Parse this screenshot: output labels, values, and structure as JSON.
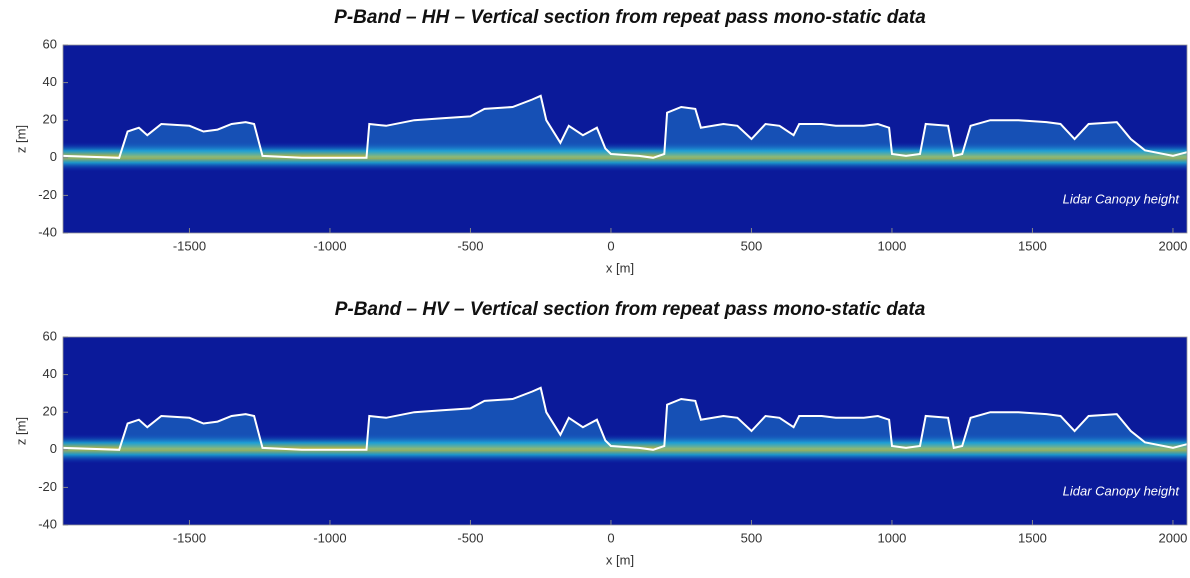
{
  "chart_data": [
    {
      "type": "line",
      "title": "P-Band – HH – Vertical section from repeat pass mono-static data",
      "xlabel": "x [m]",
      "ylabel": "z [m]",
      "annotation": "Lidar Canopy height",
      "xlim": [
        -1950,
        2050
      ],
      "ylim": [
        -40,
        60
      ],
      "xticks": [
        -1500,
        -1000,
        -500,
        0,
        500,
        1000,
        1500,
        2000
      ],
      "yticks": [
        -40,
        -20,
        0,
        20,
        40,
        60
      ],
      "color": "#ffffff",
      "x": [
        -1950,
        -1750,
        -1720,
        -1680,
        -1650,
        -1600,
        -1500,
        -1450,
        -1400,
        -1350,
        -1300,
        -1270,
        -1240,
        -1100,
        -900,
        -870,
        -860,
        -800,
        -700,
        -600,
        -500,
        -450,
        -350,
        -280,
        -250,
        -230,
        -180,
        -150,
        -100,
        -50,
        -20,
        0,
        100,
        150,
        190,
        200,
        250,
        300,
        320,
        400,
        450,
        500,
        550,
        600,
        650,
        670,
        750,
        800,
        900,
        950,
        990,
        1000,
        1050,
        1100,
        1120,
        1200,
        1220,
        1250,
        1280,
        1350,
        1450,
        1550,
        1600,
        1650,
        1700,
        1800,
        1850,
        1900,
        2000,
        2050
      ],
      "values": [
        1,
        0,
        14,
        16,
        12,
        18,
        17,
        14,
        15,
        18,
        19,
        18,
        1,
        0,
        0,
        0,
        18,
        17,
        20,
        21,
        22,
        26,
        27,
        31,
        33,
        20,
        8,
        17,
        12,
        16,
        5,
        2,
        1,
        0,
        2,
        24,
        27,
        26,
        16,
        18,
        17,
        10,
        18,
        17,
        12,
        18,
        18,
        17,
        17,
        18,
        16,
        2,
        1,
        2,
        18,
        17,
        1,
        2,
        17,
        20,
        20,
        19,
        18,
        10,
        18,
        19,
        10,
        4,
        1,
        3
      ]
    },
    {
      "type": "line",
      "title": "P-Band – HV – Vertical section from repeat pass mono-static data",
      "xlabel": "x [m]",
      "ylabel": "z [m]",
      "annotation": "Lidar Canopy height",
      "xlim": [
        -1950,
        2050
      ],
      "ylim": [
        -40,
        60
      ],
      "xticks": [
        -1500,
        -1000,
        -500,
        0,
        500,
        1000,
        1500,
        2000
      ],
      "yticks": [
        -40,
        -20,
        0,
        20,
        40,
        60
      ],
      "color": "#ffffff",
      "x": [
        -1950,
        -1750,
        -1720,
        -1680,
        -1650,
        -1600,
        -1500,
        -1450,
        -1400,
        -1350,
        -1300,
        -1270,
        -1240,
        -1100,
        -900,
        -870,
        -860,
        -800,
        -700,
        -600,
        -500,
        -450,
        -350,
        -280,
        -250,
        -230,
        -180,
        -150,
        -100,
        -50,
        -20,
        0,
        100,
        150,
        190,
        200,
        250,
        300,
        320,
        400,
        450,
        500,
        550,
        600,
        650,
        670,
        750,
        800,
        900,
        950,
        990,
        1000,
        1050,
        1100,
        1120,
        1200,
        1220,
        1250,
        1280,
        1350,
        1450,
        1550,
        1600,
        1650,
        1700,
        1800,
        1850,
        1900,
        2000,
        2050
      ],
      "values": [
        1,
        0,
        14,
        16,
        12,
        18,
        17,
        14,
        15,
        18,
        19,
        18,
        1,
        0,
        0,
        0,
        18,
        17,
        20,
        21,
        22,
        26,
        27,
        31,
        33,
        20,
        8,
        17,
        12,
        16,
        5,
        2,
        1,
        0,
        2,
        24,
        27,
        26,
        16,
        18,
        17,
        10,
        18,
        17,
        12,
        18,
        18,
        17,
        17,
        18,
        16,
        2,
        1,
        2,
        18,
        17,
        1,
        2,
        17,
        20,
        20,
        19,
        18,
        10,
        18,
        19,
        10,
        4,
        1,
        3
      ]
    }
  ]
}
